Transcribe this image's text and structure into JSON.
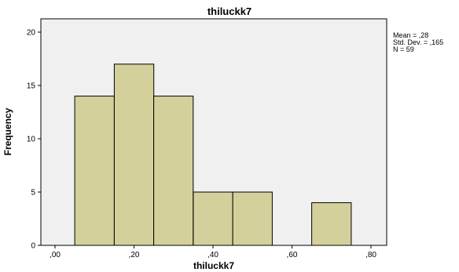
{
  "chart_data": {
    "type": "histogram",
    "title": "thiluckk7",
    "xlabel": "thiluckk7",
    "ylabel": "Frequency",
    "xlim": [
      0.0,
      0.8
    ],
    "ylim": [
      0,
      21
    ],
    "x_ticks": [
      {
        "value": 0.0,
        "label": ",00"
      },
      {
        "value": 0.2,
        "label": ",20"
      },
      {
        "value": 0.4,
        "label": ",40"
      },
      {
        "value": 0.6,
        "label": ",60"
      },
      {
        "value": 0.8,
        "label": ",80"
      }
    ],
    "y_ticks": [
      {
        "value": 0,
        "label": "0"
      },
      {
        "value": 5,
        "label": "5"
      },
      {
        "value": 10,
        "label": "10"
      },
      {
        "value": 15,
        "label": "15"
      },
      {
        "value": 20,
        "label": "20"
      }
    ],
    "bins": [
      {
        "start": 0.05,
        "end": 0.15,
        "count": 14
      },
      {
        "start": 0.15,
        "end": 0.25,
        "count": 17
      },
      {
        "start": 0.25,
        "end": 0.35,
        "count": 14
      },
      {
        "start": 0.35,
        "end": 0.45,
        "count": 5
      },
      {
        "start": 0.45,
        "end": 0.55,
        "count": 5
      },
      {
        "start": 0.65,
        "end": 0.75,
        "count": 4
      }
    ],
    "stats": {
      "mean_line": "Mean = ,28",
      "sd_line": "Std. Dev. = ,165",
      "n_line": "N = 59"
    },
    "grid": false,
    "legend": "none",
    "colors": {
      "bar_fill": "#d4d09b",
      "bar_stroke": "#000000",
      "plot_bg": "#f0f0f0",
      "page_bg": "#ffffff"
    }
  }
}
